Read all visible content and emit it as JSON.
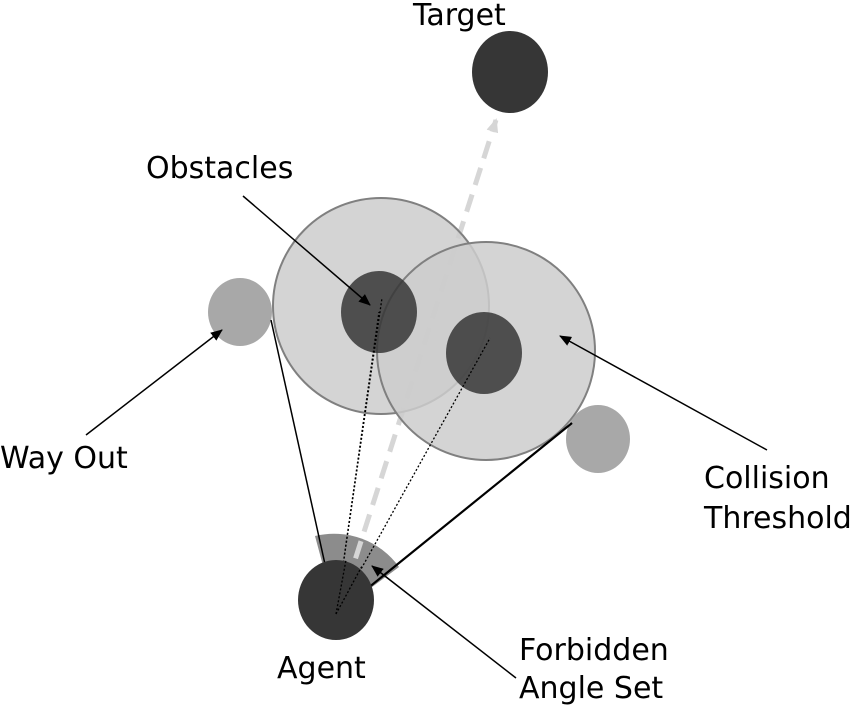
{
  "labels": {
    "target": "Target",
    "obstacles": "Obstacles",
    "way_out": "Way Out",
    "collision_line1": "Collision",
    "collision_line2": "Threshold",
    "agent": "Agent",
    "forbidden_line1": "Forbidden",
    "forbidden_line2": "Angle Set"
  },
  "colors": {
    "dark_body": "#363636",
    "threshold_fill": "#cccccc",
    "threshold_stroke": "#808080",
    "way_out_fill": "#a8a8a8",
    "forbidden_sector": "#8c8c8c",
    "target_path": "#d6d6d6",
    "line": "#000000"
  }
}
